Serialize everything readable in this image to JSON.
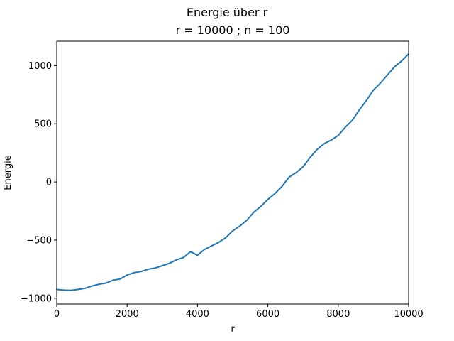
{
  "chart_data": {
    "type": "line",
    "suptitle": "Energie über r",
    "title": "r = 10000 ; n = 100",
    "xlabel": "r",
    "ylabel": "Energie",
    "xlim": [
      0,
      10000
    ],
    "ylim": [
      -1050,
      1210
    ],
    "xticks": [
      0,
      2000,
      4000,
      6000,
      8000,
      10000
    ],
    "yticks": [
      -1000,
      -500,
      0,
      500,
      1000
    ],
    "xtick_labels": [
      "0",
      "2000",
      "4000",
      "6000",
      "8000",
      "10000"
    ],
    "ytick_labels": [
      "−1000",
      "−500",
      "0",
      "500",
      "1000"
    ],
    "grid": false,
    "series": [
      {
        "color": "#1f77b4",
        "x": [
          0,
          200,
          400,
          600,
          800,
          1000,
          1200,
          1400,
          1600,
          1800,
          2000,
          2200,
          2400,
          2600,
          2800,
          3000,
          3200,
          3400,
          3600,
          3800,
          4000,
          4200,
          4400,
          4600,
          4800,
          5000,
          5200,
          5400,
          5600,
          5800,
          6000,
          6200,
          6400,
          6600,
          6800,
          7000,
          7200,
          7400,
          7600,
          7800,
          8000,
          8200,
          8400,
          8600,
          8800,
          9000,
          9200,
          9400,
          9600,
          9800,
          10000
        ],
        "y": [
          -925,
          -930,
          -932,
          -925,
          -915,
          -895,
          -880,
          -870,
          -845,
          -835,
          -800,
          -780,
          -770,
          -750,
          -740,
          -720,
          -700,
          -670,
          -650,
          -600,
          -630,
          -580,
          -550,
          -520,
          -480,
          -420,
          -380,
          -330,
          -260,
          -210,
          -150,
          -100,
          -40,
          40,
          80,
          130,
          210,
          280,
          330,
          360,
          400,
          470,
          530,
          620,
          700,
          790,
          850,
          920,
          990,
          1040,
          1100
        ]
      }
    ]
  }
}
